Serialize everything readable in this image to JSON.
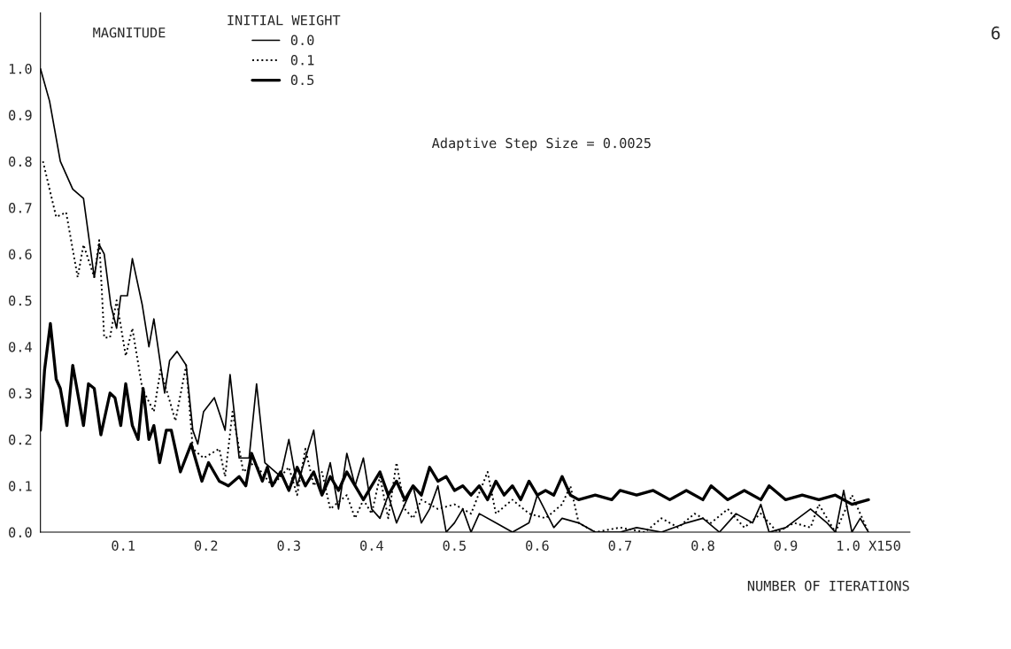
{
  "chart_data": {
    "type": "line",
    "xlabel": "NUMBER OF ITERATIONS",
    "ylabel": "MAGNITUDE",
    "legend_title": "INITIAL WEIGHT",
    "annotations": [
      "Adaptive Step Size = 0.0025",
      "6"
    ],
    "xlim": [
      0,
      1.05
    ],
    "ylim": [
      0,
      1.12
    ],
    "xticks": [
      {
        "value": 0.1,
        "label": "0.1"
      },
      {
        "value": 0.2,
        "label": "0.2"
      },
      {
        "value": 0.3,
        "label": "0.3"
      },
      {
        "value": 0.4,
        "label": "0.4"
      },
      {
        "value": 0.5,
        "label": "0.5"
      },
      {
        "value": 0.6,
        "label": "0.6"
      },
      {
        "value": 0.7,
        "label": "0.7"
      },
      {
        "value": 0.8,
        "label": "0.8"
      },
      {
        "value": 0.9,
        "label": "0.9"
      },
      {
        "value": 1.0,
        "label": "1.0 X150"
      }
    ],
    "yticks": [
      {
        "value": 0,
        "label": "0.0"
      },
      {
        "value": 0.1,
        "label": "0.1"
      },
      {
        "value": 0.2,
        "label": "0.2"
      },
      {
        "value": 0.3,
        "label": "0.3"
      },
      {
        "value": 0.4,
        "label": "0.4"
      },
      {
        "value": 0.5,
        "label": "0.5"
      },
      {
        "value": 0.6,
        "label": "0.6"
      },
      {
        "value": 0.7,
        "label": "0.7"
      },
      {
        "value": 0.8,
        "label": "0.8"
      },
      {
        "value": 0.9,
        "label": "0.9"
      },
      {
        "value": 1.0,
        "label": "1.0"
      }
    ],
    "grid": false,
    "legend": "top left",
    "marker": "none",
    "series": [
      {
        "name": "0.0",
        "color": "#000000",
        "line_style": "solid",
        "x": [
          0,
          0.011,
          0.024,
          0.039,
          0.052,
          0.065,
          0.071,
          0.077,
          0.085,
          0.092,
          0.097,
          0.105,
          0.111,
          0.123,
          0.131,
          0.137,
          0.15,
          0.156,
          0.165,
          0.176,
          0.184,
          0.19,
          0.197,
          0.21,
          0.223,
          0.229,
          0.24,
          0.252,
          0.261,
          0.271,
          0.29,
          0.3,
          0.31,
          0.33,
          0.34,
          0.35,
          0.36,
          0.37,
          0.38,
          0.39,
          0.4,
          0.41,
          0.42,
          0.43,
          0.44,
          0.45,
          0.46,
          0.47,
          0.48,
          0.49,
          0.5,
          0.51,
          0.52,
          0.53,
          0.55,
          0.57,
          0.59,
          0.6,
          0.62,
          0.63,
          0.65,
          0.67,
          0.7,
          0.72,
          0.75,
          0.78,
          0.8,
          0.82,
          0.84,
          0.86,
          0.87,
          0.88,
          0.9,
          0.93,
          0.95,
          0.96,
          0.97,
          0.98,
          0.99,
          1.0
        ],
        "values": [
          1.0,
          0.93,
          0.8,
          0.74,
          0.72,
          0.55,
          0.62,
          0.6,
          0.49,
          0.44,
          0.51,
          0.51,
          0.59,
          0.49,
          0.4,
          0.46,
          0.3,
          0.37,
          0.39,
          0.36,
          0.22,
          0.19,
          0.26,
          0.29,
          0.22,
          0.34,
          0.16,
          0.16,
          0.32,
          0.15,
          0.12,
          0.2,
          0.1,
          0.22,
          0.08,
          0.15,
          0.05,
          0.17,
          0.1,
          0.16,
          0.05,
          0.03,
          0.08,
          0.02,
          0.06,
          0.1,
          0.02,
          0.05,
          0.1,
          0.0,
          0.02,
          0.05,
          0.0,
          0.04,
          0.02,
          0.0,
          0.02,
          0.08,
          0.01,
          0.03,
          0.02,
          0.0,
          0.0,
          0.01,
          0.0,
          0.02,
          0.03,
          0.0,
          0.04,
          0.02,
          0.06,
          0.0,
          0.01,
          0.05,
          0.02,
          0.0,
          0.09,
          0.0,
          0.03,
          0.0
        ]
      },
      {
        "name": "0.1",
        "color": "#000000",
        "line_style": "dotted",
        "x": [
          0.003,
          0.019,
          0.031,
          0.045,
          0.052,
          0.065,
          0.071,
          0.077,
          0.084,
          0.092,
          0.103,
          0.111,
          0.123,
          0.137,
          0.145,
          0.155,
          0.163,
          0.176,
          0.184,
          0.197,
          0.216,
          0.223,
          0.232,
          0.245,
          0.258,
          0.271,
          0.28,
          0.3,
          0.31,
          0.32,
          0.33,
          0.34,
          0.35,
          0.37,
          0.38,
          0.39,
          0.4,
          0.41,
          0.42,
          0.43,
          0.44,
          0.45,
          0.46,
          0.48,
          0.5,
          0.52,
          0.54,
          0.55,
          0.57,
          0.59,
          0.61,
          0.63,
          0.64,
          0.65,
          0.67,
          0.7,
          0.73,
          0.75,
          0.77,
          0.79,
          0.81,
          0.83,
          0.85,
          0.87,
          0.89,
          0.91,
          0.93,
          0.94,
          0.96,
          0.98,
          1.0
        ],
        "values": [
          0.8,
          0.68,
          0.69,
          0.55,
          0.62,
          0.55,
          0.63,
          0.42,
          0.42,
          0.5,
          0.38,
          0.44,
          0.31,
          0.26,
          0.35,
          0.29,
          0.24,
          0.36,
          0.18,
          0.16,
          0.18,
          0.12,
          0.26,
          0.13,
          0.15,
          0.12,
          0.1,
          0.14,
          0.08,
          0.18,
          0.1,
          0.13,
          0.05,
          0.08,
          0.03,
          0.07,
          0.04,
          0.12,
          0.03,
          0.15,
          0.05,
          0.03,
          0.07,
          0.05,
          0.06,
          0.04,
          0.13,
          0.04,
          0.07,
          0.04,
          0.03,
          0.06,
          0.1,
          0.02,
          0.0,
          0.01,
          0.0,
          0.03,
          0.01,
          0.04,
          0.02,
          0.05,
          0.01,
          0.04,
          0.0,
          0.02,
          0.01,
          0.06,
          0.0,
          0.08,
          0.0
        ]
      },
      {
        "name": "0.5",
        "color": "#000000",
        "line_style": "solid",
        "x": [
          0,
          0.005,
          0.012,
          0.019,
          0.024,
          0.032,
          0.039,
          0.052,
          0.058,
          0.065,
          0.073,
          0.084,
          0.09,
          0.097,
          0.103,
          0.111,
          0.118,
          0.124,
          0.131,
          0.137,
          0.144,
          0.152,
          0.158,
          0.169,
          0.182,
          0.195,
          0.203,
          0.216,
          0.227,
          0.24,
          0.248,
          0.255,
          0.268,
          0.274,
          0.28,
          0.29,
          0.3,
          0.31,
          0.32,
          0.33,
          0.34,
          0.35,
          0.36,
          0.37,
          0.38,
          0.39,
          0.4,
          0.41,
          0.42,
          0.43,
          0.44,
          0.45,
          0.46,
          0.47,
          0.48,
          0.49,
          0.5,
          0.51,
          0.52,
          0.53,
          0.54,
          0.55,
          0.56,
          0.57,
          0.58,
          0.59,
          0.6,
          0.61,
          0.62,
          0.63,
          0.64,
          0.65,
          0.67,
          0.69,
          0.7,
          0.72,
          0.74,
          0.76,
          0.78,
          0.8,
          0.81,
          0.83,
          0.85,
          0.87,
          0.88,
          0.9,
          0.92,
          0.94,
          0.96,
          0.98,
          1.0
        ],
        "values": [
          0.22,
          0.35,
          0.45,
          0.33,
          0.31,
          0.23,
          0.36,
          0.23,
          0.32,
          0.31,
          0.21,
          0.3,
          0.29,
          0.23,
          0.32,
          0.23,
          0.2,
          0.31,
          0.2,
          0.23,
          0.15,
          0.22,
          0.22,
          0.13,
          0.19,
          0.11,
          0.15,
          0.11,
          0.1,
          0.12,
          0.1,
          0.17,
          0.11,
          0.14,
          0.1,
          0.13,
          0.09,
          0.14,
          0.1,
          0.13,
          0.08,
          0.12,
          0.09,
          0.13,
          0.1,
          0.07,
          0.1,
          0.13,
          0.08,
          0.11,
          0.07,
          0.1,
          0.08,
          0.14,
          0.11,
          0.12,
          0.09,
          0.1,
          0.08,
          0.1,
          0.07,
          0.11,
          0.08,
          0.1,
          0.07,
          0.11,
          0.08,
          0.09,
          0.08,
          0.12,
          0.08,
          0.07,
          0.08,
          0.07,
          0.09,
          0.08,
          0.09,
          0.07,
          0.09,
          0.07,
          0.1,
          0.07,
          0.09,
          0.07,
          0.1,
          0.07,
          0.08,
          0.07,
          0.08,
          0.06,
          0.07
        ]
      }
    ]
  }
}
